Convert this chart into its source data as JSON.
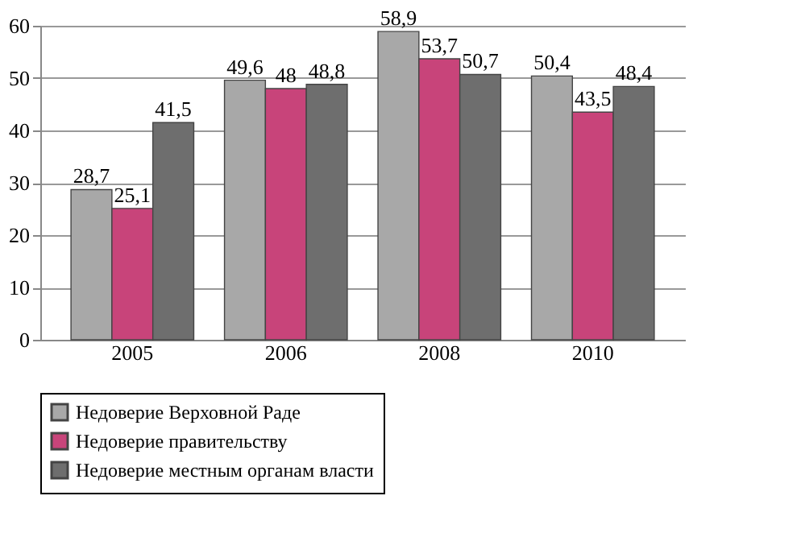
{
  "chart_data": {
    "type": "bar",
    "categories": [
      "2005",
      "2006",
      "2008",
      "2010"
    ],
    "series": [
      {
        "name": "Недоверие Верховной Раде",
        "color": "#a8a8a8",
        "values": [
          28.7,
          49.6,
          58.9,
          50.4
        ],
        "value_labels": [
          "28,7",
          "49,6",
          "58,9",
          "50,4"
        ]
      },
      {
        "name": "Недоверие правительству",
        "color": "#c8447a",
        "values": [
          25.1,
          48,
          53.7,
          43.5
        ],
        "value_labels": [
          "25,1",
          "48",
          "53,7",
          "43,5"
        ]
      },
      {
        "name": "Недоверие местным органам власти",
        "color": "#6e6e6e",
        "values": [
          41.5,
          48.8,
          50.7,
          48.4
        ],
        "value_labels": [
          "41,5",
          "48,8",
          "50,7",
          "48,4"
        ]
      }
    ],
    "ylim": [
      0,
      60
    ],
    "yticks": [
      0,
      10,
      20,
      30,
      40,
      50,
      60
    ],
    "grid": "y",
    "legend": "bottom"
  }
}
